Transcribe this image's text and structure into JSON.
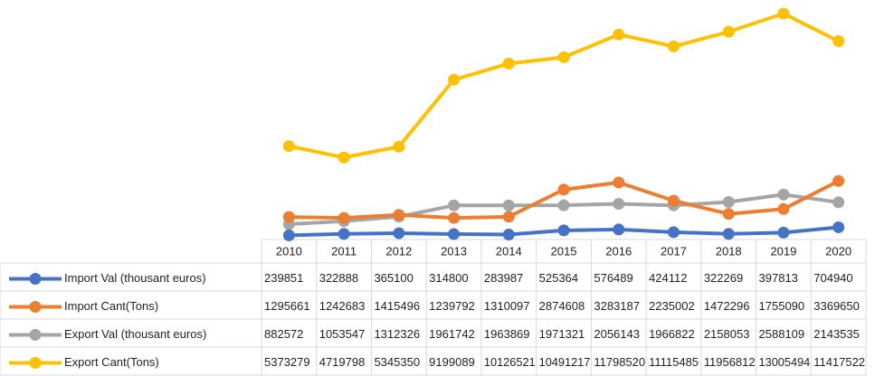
{
  "chart_data": {
    "type": "line",
    "categories": [
      "2010",
      "2011",
      "2012",
      "2013",
      "2014",
      "2015",
      "2016",
      "2017",
      "2018",
      "2019",
      "2020"
    ],
    "series": [
      {
        "name": "Import Val (thousant euros)",
        "color": "#4472c4",
        "values": [
          239851,
          322888,
          365100,
          314800,
          283987,
          525364,
          576489,
          424112,
          322269,
          397813,
          704940
        ]
      },
      {
        "name": "Import Cant(Tons)",
        "color": "#ed7d31",
        "values": [
          1295661,
          1242683,
          1415496,
          1239792,
          1310097,
          2874608,
          3283187,
          2235002,
          1472296,
          1755090,
          3369650
        ]
      },
      {
        "name": "Export Val (thousant euros)",
        "color": "#a5a5a5",
        "values": [
          882572,
          1053547,
          1312326,
          1961742,
          1963869,
          1971321,
          2056143,
          1966822,
          2158053,
          2588109,
          2143535
        ]
      },
      {
        "name": "Export Cant(Tons)",
        "color": "#ffc000",
        "values": [
          5373279,
          4719798,
          5345350,
          9199089,
          10126521,
          10491217,
          11798520,
          11115485,
          11956812,
          13005494,
          11417522
        ]
      }
    ]
  }
}
